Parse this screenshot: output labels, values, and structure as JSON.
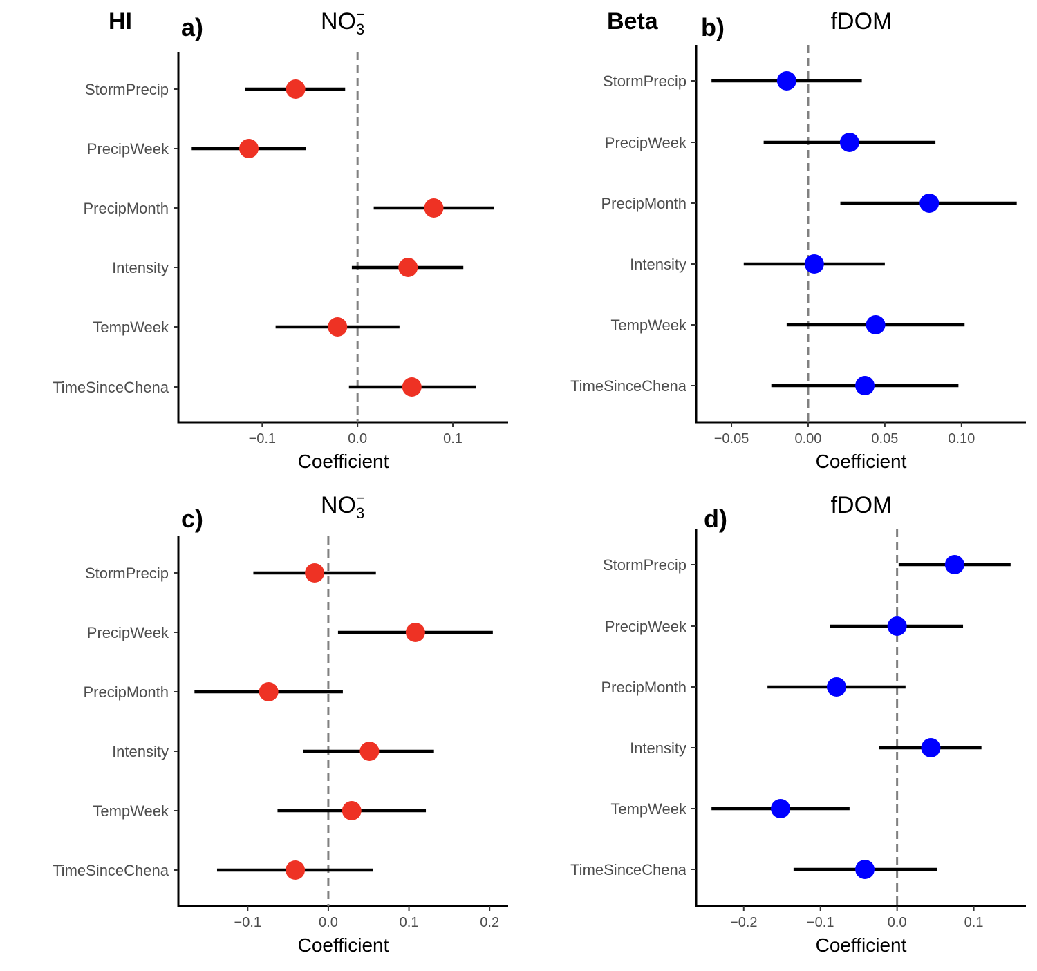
{
  "row_labels": {
    "hi": "HI",
    "beta": "Beta"
  },
  "colors": {
    "no3_point": "#EE3224",
    "fdom_point": "#0000FF",
    "bar": "#000000",
    "zero_line": "#808080"
  },
  "chart_data": [
    {
      "type": "scatter",
      "panel_tag": "a)",
      "title": "NO3−",
      "title_parts": {
        "base": "NO",
        "sub": "3",
        "sup": "−"
      },
      "xlabel": "Coefficient",
      "ylabel": "",
      "categories": [
        "StormPrecip",
        "PrecipWeek",
        "PrecipMonth",
        "Intensity",
        "TempWeek",
        "TimeSinceChena"
      ],
      "estimate": [
        -0.065,
        -0.114,
        0.08,
        0.053,
        -0.021,
        0.057
      ],
      "lower": [
        -0.118,
        -0.174,
        0.017,
        -0.006,
        -0.086,
        -0.009
      ],
      "upper": [
        -0.013,
        -0.054,
        0.143,
        0.111,
        0.044,
        0.124
      ],
      "xlim": [
        -0.188,
        0.158
      ],
      "xticks": [
        -0.1,
        0.0,
        0.1
      ],
      "xtick_labels": [
        "−0.1",
        "0.0",
        "0.1"
      ],
      "zero_line": 0
    },
    {
      "type": "scatter",
      "panel_tag": "b)",
      "title": "fDOM",
      "xlabel": "Coefficient",
      "ylabel": "",
      "categories": [
        "StormPrecip",
        "PrecipWeek",
        "PrecipMonth",
        "Intensity",
        "TempWeek",
        "TimeSinceChena"
      ],
      "estimate": [
        -0.014,
        0.027,
        0.079,
        0.004,
        0.044,
        0.037
      ],
      "lower": [
        -0.063,
        -0.029,
        0.021,
        -0.042,
        -0.014,
        -0.024
      ],
      "upper": [
        0.035,
        0.083,
        0.136,
        0.05,
        0.102,
        0.098
      ],
      "xlim": [
        -0.073,
        0.142
      ],
      "xticks": [
        -0.05,
        0.0,
        0.05,
        0.1
      ],
      "xtick_labels": [
        "−0.05",
        "0.00",
        "0.05",
        "0.10"
      ],
      "zero_line": 0
    },
    {
      "type": "scatter",
      "panel_tag": "c)",
      "title": "NO3−",
      "title_parts": {
        "base": "NO",
        "sub": "3",
        "sup": "−"
      },
      "xlabel": "Coefficient",
      "ylabel": "",
      "categories": [
        "StormPrecip",
        "PrecipWeek",
        "PrecipMonth",
        "Intensity",
        "TempWeek",
        "TimeSinceChena"
      ],
      "estimate": [
        -0.017,
        0.108,
        -0.074,
        0.051,
        0.029,
        -0.041
      ],
      "lower": [
        -0.093,
        0.012,
        -0.166,
        -0.031,
        -0.063,
        -0.138
      ],
      "upper": [
        0.059,
        0.204,
        0.018,
        0.131,
        0.121,
        0.055
      ],
      "xlim": [
        -0.186,
        0.223
      ],
      "xticks": [
        -0.1,
        0.0,
        0.1,
        0.2
      ],
      "xtick_labels": [
        "−0.1",
        "0.0",
        "0.1",
        "0.2"
      ],
      "zero_line": 0
    },
    {
      "type": "scatter",
      "panel_tag": "d)",
      "title": "fDOM",
      "xlabel": "Coefficient",
      "ylabel": "",
      "categories": [
        "StormPrecip",
        "PrecipWeek",
        "PrecipMonth",
        "Intensity",
        "TempWeek",
        "TimeSinceChena"
      ],
      "estimate": [
        0.075,
        0.0,
        -0.079,
        0.044,
        -0.152,
        -0.042
      ],
      "lower": [
        0.002,
        -0.088,
        -0.169,
        -0.024,
        -0.242,
        -0.135
      ],
      "upper": [
        0.148,
        0.086,
        0.011,
        0.11,
        -0.062,
        0.052
      ],
      "xlim": [
        -0.262,
        0.168
      ],
      "xticks": [
        -0.2,
        -0.1,
        0.0,
        0.1
      ],
      "xtick_labels": [
        "−0.2",
        "−0.1",
        "0.0",
        "0.1"
      ],
      "zero_line": 0
    }
  ]
}
